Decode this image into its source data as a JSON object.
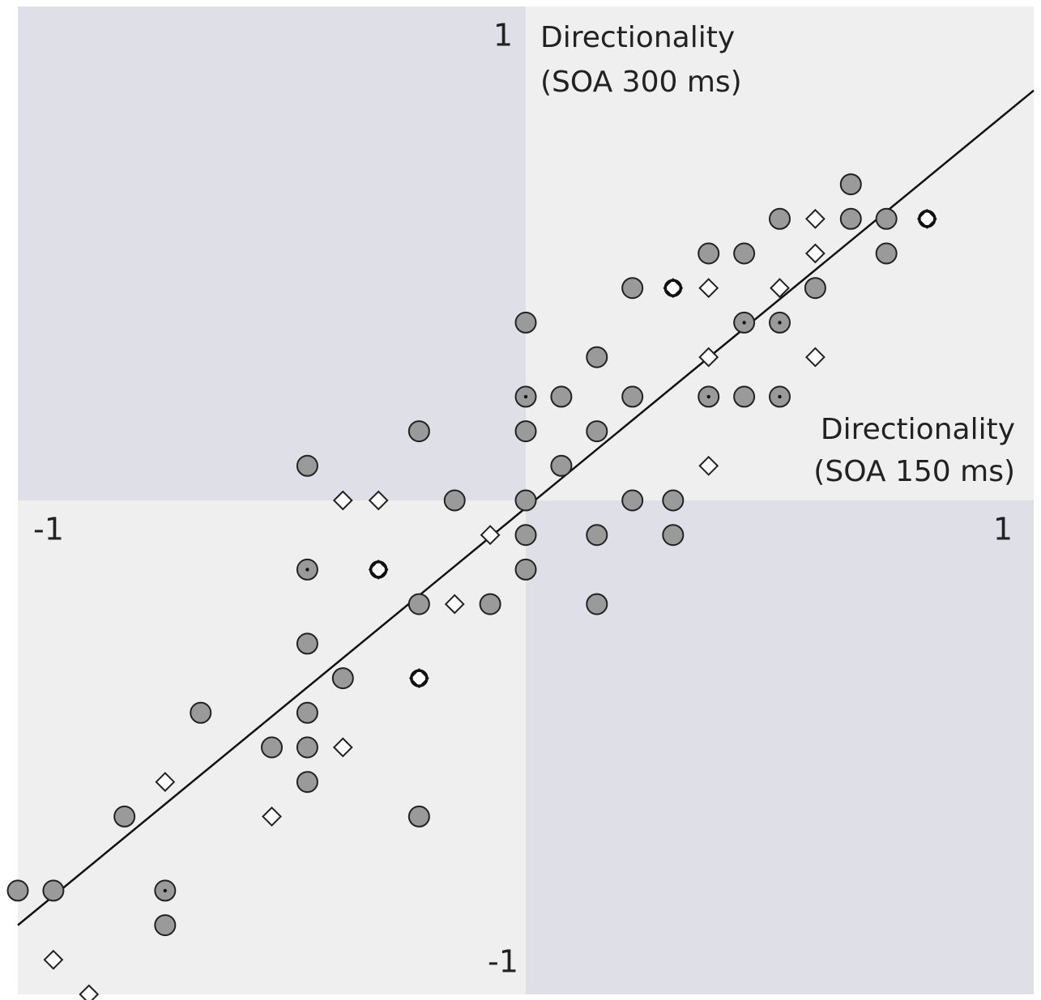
{
  "chart_data": {
    "type": "scatter",
    "xlabel": [
      "Directionality",
      "(SOA 150 ms)"
    ],
    "ylabel": [
      "Directionality",
      "(SOA 300 ms)"
    ],
    "xlim": [
      -1,
      1
    ],
    "ylim": [
      -1,
      1
    ],
    "xticks": [
      -1,
      1
    ],
    "yticks": [
      -1,
      1
    ],
    "quadrant_colors": [
      "#efeff0",
      "#dfdfe8"
    ],
    "series": [
      {
        "marker": "circle",
        "color": "#9a9a9a",
        "x": [
          0.64,
          0.5,
          0.64,
          0.71,
          0.36,
          0.43,
          0.71,
          0.21,
          0.57,
          0,
          0.14,
          0.07,
          0.21,
          0.43,
          -0.21,
          0,
          0.14,
          -0.43,
          0.07,
          -0.14,
          0,
          0.21,
          0.29,
          0,
          0.14,
          0.29,
          0,
          -0.21,
          -0.07,
          0.14,
          -0.43,
          -0.36,
          -0.64,
          -0.43,
          -0.5,
          -0.43,
          -0.43,
          -0.79,
          -0.21,
          -1,
          -0.93,
          -0.71
        ],
        "values": [
          0.64,
          0.57,
          0.57,
          0.57,
          0.5,
          0.5,
          0.5,
          0.43,
          0.43,
          0.36,
          0.29,
          0.21,
          0.21,
          0.21,
          0.14,
          0.14,
          0.14,
          0.07,
          0.07,
          0,
          0,
          0,
          0,
          -0.07,
          -0.07,
          -0.07,
          -0.14,
          -0.21,
          -0.21,
          -0.21,
          -0.29,
          -0.36,
          -0.43,
          -0.43,
          -0.5,
          -0.5,
          -0.57,
          -0.64,
          -0.64,
          -0.79,
          -0.79,
          -0.86
        ]
      },
      {
        "marker": "diamond",
        "color": "#ffffff",
        "x": [
          0.57,
          0.57,
          0.36,
          0.5,
          0.36,
          0.57,
          0.36,
          -0.36,
          -0.29,
          -0.07,
          -0.14,
          -0.36,
          -0.71,
          -0.5,
          -0.93,
          -0.86
        ],
        "values": [
          0.57,
          0.5,
          0.43,
          0.43,
          0.29,
          0.29,
          0.07,
          0,
          0,
          -0.07,
          -0.21,
          -0.5,
          -0.57,
          -0.64,
          -0.93,
          -1
        ]
      },
      {
        "marker": "dotted-circle",
        "color": "#9a9a9a",
        "x": [
          0.43,
          0.5,
          0,
          0.36,
          0.5,
          -0.43,
          -0.71
        ],
        "values": [
          0.36,
          0.36,
          0.21,
          0.21,
          0.21,
          -0.14,
          -0.79
        ]
      },
      {
        "marker": "bold",
        "color": "#ffffff",
        "x": [
          0.79,
          0.29,
          -0.29,
          -0.21
        ],
        "values": [
          0.57,
          0.43,
          -0.14,
          -0.36
        ]
      },
      {
        "marker": "line",
        "color": "#111111",
        "x": [
          -1,
          1
        ],
        "values": [
          -0.86,
          0.83
        ]
      }
    ]
  }
}
